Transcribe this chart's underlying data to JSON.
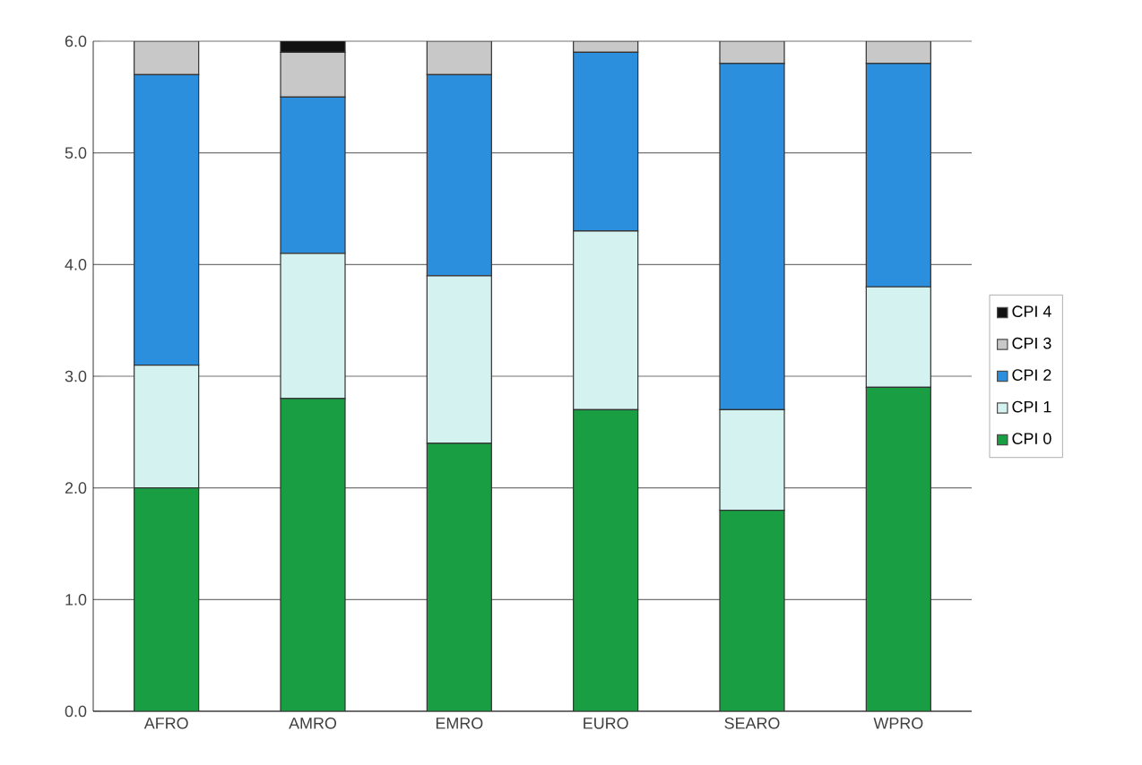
{
  "chart_data": {
    "type": "bar",
    "stacked": true,
    "categories": [
      "AFRO",
      "AMRO",
      "EMRO",
      "EURO",
      "SEARO",
      "WPRO"
    ],
    "series": [
      {
        "name": "CPI 0",
        "color": "#1a9e44",
        "values": [
          2.0,
          2.8,
          2.4,
          2.7,
          1.8,
          2.9
        ]
      },
      {
        "name": "CPI 1",
        "color": "#d4f2f0",
        "values": [
          1.1,
          1.3,
          1.5,
          1.6,
          0.9,
          0.9
        ]
      },
      {
        "name": "CPI 2",
        "color": "#2b8fdd",
        "values": [
          2.6,
          1.4,
          1.8,
          1.6,
          3.1,
          2.0
        ]
      },
      {
        "name": "CPI 3",
        "color": "#c8c8c8",
        "values": [
          0.3,
          0.4,
          0.3,
          0.1,
          0.2,
          0.2
        ]
      },
      {
        "name": "CPI 4",
        "color": "#111111",
        "values": [
          0,
          0.1,
          0,
          0,
          0,
          0
        ]
      }
    ],
    "ylim": [
      0,
      6
    ],
    "yticks": [
      {
        "value": 0,
        "label": "0.0"
      },
      {
        "value": 1,
        "label": "1.0"
      },
      {
        "value": 2,
        "label": "2.0"
      },
      {
        "value": 3,
        "label": "3.0"
      },
      {
        "value": 4,
        "label": "4.0"
      },
      {
        "value": 5,
        "label": "5.0"
      },
      {
        "value": 6,
        "label": "6.0"
      }
    ],
    "grid": "y",
    "legend": "right"
  }
}
